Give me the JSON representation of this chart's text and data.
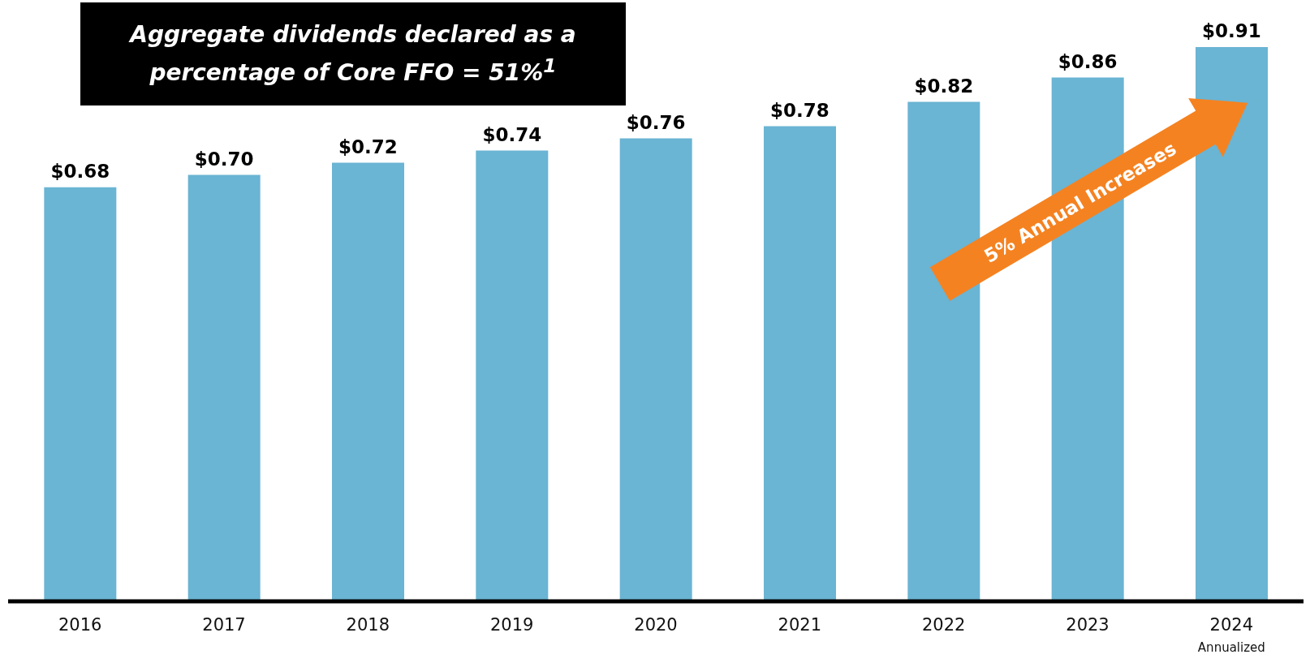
{
  "chart_data": {
    "type": "bar",
    "title": "Aggregate dividends declared as a percentage of Core FFO = 51%$^{1}$",
    "categories": [
      "2016",
      "2017",
      "2018",
      "2019",
      "2020",
      "2021",
      "2022",
      "2023",
      "2024"
    ],
    "values": [
      0.68,
      0.7,
      0.72,
      0.74,
      0.76,
      0.78,
      0.82,
      0.86,
      0.91
    ],
    "value_labels": [
      "$0.68",
      "$0.70",
      "$0.72",
      "$0.74",
      "$0.76",
      "$0.78",
      "$0.82",
      "$0.86",
      "$0.91"
    ],
    "color": "#6ab4d4",
    "annotations": [
      "5% Annual Increases",
      "Annualized"
    ]
  }
}
